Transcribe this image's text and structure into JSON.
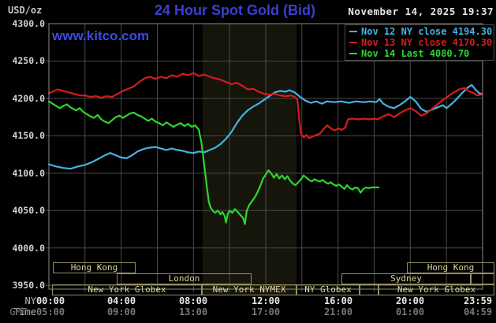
{
  "header": {
    "units_label": "USD/oz",
    "title": "24 Hour Spot Gold (Bid)",
    "timestamp": "November 14, 2025 19:37",
    "watermark": "www.kitco.com"
  },
  "legend": {
    "items": [
      {
        "label": "Nov 12 NY close 4194.30",
        "color": "#45b2e4"
      },
      {
        "label": "Nov 13 NY close 4170.30",
        "color": "#d41c1c"
      },
      {
        "label": "Nov 14 Last 4080.70",
        "color": "#2ed42e"
      }
    ]
  },
  "axes": {
    "ny_label": "NY Time",
    "gmt_label": "GMT",
    "y_ticks": [
      "4300.0",
      "4250.0",
      "4200.0",
      "4150.0",
      "4100.0",
      "4050.0",
      "4000.0",
      "3950.0"
    ],
    "x_ticks_ny": [
      "00:00",
      "04:00",
      "08:00",
      "12:00",
      "16:00",
      "20:00",
      "23:59"
    ],
    "x_ticks_gmt": [
      "05:00",
      "09:00",
      "13:00",
      "17:00",
      "21:00",
      "01:00",
      "04:59"
    ],
    "x_tick_hours": [
      0,
      4,
      8,
      12,
      16,
      20,
      23.93
    ]
  },
  "sessions": {
    "rows": [
      [
        {
          "label": "Hong Kong",
          "start": 0.2,
          "end": 4.8
        },
        {
          "label": "Hong Kong",
          "start": 19.8,
          "end": 24.65
        }
      ],
      [
        {
          "label": "London",
          "start": 3.75,
          "end": 11.2
        },
        {
          "label": "Sydney",
          "start": 16.2,
          "end": 23.35
        },
        {
          "label": "",
          "start": 23.35,
          "end": 24.65
        }
      ],
      [
        {
          "label": "New York Globex",
          "start": 0.17,
          "end": 8.47
        },
        {
          "label": "New York NYMEX",
          "start": 8.47,
          "end": 13.7
        },
        {
          "label": "NY Globex",
          "start": 13.7,
          "end": 17.2
        },
        {
          "label": "",
          "start": 17.2,
          "end": 18.24
        },
        {
          "label": "New York Globex",
          "start": 18.24,
          "end": 24.65
        }
      ]
    ]
  },
  "colors": {
    "background": "#000000",
    "grid": "#4a4a4a",
    "frame": "#8c8c8c",
    "band": "#15150c",
    "blue": "#45b2e4",
    "red": "#d41c1c",
    "green": "#2ed42e",
    "title_blue": "#3a3fd2",
    "session_border": "#95905f",
    "session_text": "#ded69b"
  },
  "chart_data": {
    "type": "line",
    "title": "24 Hour Spot Gold (Bid)",
    "xlabel": "NY Time (hours, 00:00-23:59)",
    "ylabel": "USD/oz",
    "xlim": [
      0,
      24
    ],
    "ylim": [
      3945,
      4300
    ],
    "grid": {
      "x_step_hours": 2,
      "y_step": 50
    },
    "legend_position": "top-right",
    "highlight_band_hours": [
      8.5,
      13.7
    ],
    "series": [
      {
        "name": "Nov 12",
        "close_label": "NY close 4194.30",
        "color": "#45b2e4",
        "points": [
          [
            0.0,
            4112
          ],
          [
            0.4,
            4109
          ],
          [
            0.8,
            4107
          ],
          [
            1.2,
            4106
          ],
          [
            1.6,
            4109
          ],
          [
            2.0,
            4111
          ],
          [
            2.4,
            4115
          ],
          [
            2.8,
            4120
          ],
          [
            3.1,
            4124
          ],
          [
            3.4,
            4127
          ],
          [
            3.7,
            4124
          ],
          [
            4.0,
            4121
          ],
          [
            4.3,
            4120
          ],
          [
            4.6,
            4124
          ],
          [
            4.9,
            4129
          ],
          [
            5.2,
            4132
          ],
          [
            5.5,
            4134
          ],
          [
            5.9,
            4135
          ],
          [
            6.2,
            4133
          ],
          [
            6.5,
            4131
          ],
          [
            6.8,
            4133
          ],
          [
            7.1,
            4131
          ],
          [
            7.4,
            4130
          ],
          [
            7.7,
            4128
          ],
          [
            8.0,
            4127
          ],
          [
            8.3,
            4129
          ],
          [
            8.6,
            4128
          ],
          [
            8.9,
            4131
          ],
          [
            9.2,
            4134
          ],
          [
            9.5,
            4139
          ],
          [
            9.8,
            4146
          ],
          [
            10.1,
            4155
          ],
          [
            10.4,
            4167
          ],
          [
            10.7,
            4177
          ],
          [
            11.0,
            4184
          ],
          [
            11.3,
            4189
          ],
          [
            11.6,
            4193
          ],
          [
            11.9,
            4198
          ],
          [
            12.2,
            4203
          ],
          [
            12.5,
            4208
          ],
          [
            12.8,
            4210
          ],
          [
            13.1,
            4209
          ],
          [
            13.3,
            4211
          ],
          [
            13.6,
            4208
          ],
          [
            13.9,
            4202
          ],
          [
            14.2,
            4197
          ],
          [
            14.5,
            4194
          ],
          [
            14.8,
            4196
          ],
          [
            15.1,
            4193
          ],
          [
            15.4,
            4196
          ],
          [
            15.8,
            4195
          ],
          [
            16.2,
            4196
          ],
          [
            16.6,
            4194
          ],
          [
            17.0,
            4196
          ],
          [
            17.4,
            4195
          ],
          [
            17.8,
            4196
          ],
          [
            18.1,
            4195
          ],
          [
            18.3,
            4199
          ],
          [
            18.5,
            4193
          ],
          [
            18.8,
            4189
          ],
          [
            19.1,
            4187
          ],
          [
            19.4,
            4191
          ],
          [
            19.7,
            4196
          ],
          [
            20.0,
            4202
          ],
          [
            20.3,
            4196
          ],
          [
            20.6,
            4186
          ],
          [
            20.9,
            4182
          ],
          [
            21.2,
            4185
          ],
          [
            21.5,
            4188
          ],
          [
            21.8,
            4191
          ],
          [
            22.0,
            4187
          ],
          [
            22.3,
            4193
          ],
          [
            22.6,
            4200
          ],
          [
            22.9,
            4208
          ],
          [
            23.2,
            4215
          ],
          [
            23.4,
            4218
          ],
          [
            23.6,
            4212
          ],
          [
            23.8,
            4207
          ],
          [
            23.95,
            4206
          ]
        ]
      },
      {
        "name": "Nov 13",
        "close_label": "NY close 4170.30",
        "color": "#d41c1c",
        "points": [
          [
            0.0,
            4207
          ],
          [
            0.3,
            4210
          ],
          [
            0.5,
            4212
          ],
          [
            0.8,
            4210
          ],
          [
            1.1,
            4208
          ],
          [
            1.4,
            4206
          ],
          [
            1.7,
            4204
          ],
          [
            2.0,
            4204
          ],
          [
            2.3,
            4202
          ],
          [
            2.6,
            4203
          ],
          [
            2.9,
            4201
          ],
          [
            3.2,
            4203
          ],
          [
            3.5,
            4202
          ],
          [
            3.8,
            4206
          ],
          [
            4.1,
            4210
          ],
          [
            4.4,
            4213
          ],
          [
            4.7,
            4216
          ],
          [
            5.0,
            4222
          ],
          [
            5.3,
            4227
          ],
          [
            5.6,
            4229
          ],
          [
            5.9,
            4226
          ],
          [
            6.2,
            4229
          ],
          [
            6.5,
            4227
          ],
          [
            6.8,
            4231
          ],
          [
            7.1,
            4229
          ],
          [
            7.4,
            4233
          ],
          [
            7.7,
            4231
          ],
          [
            8.0,
            4234
          ],
          [
            8.3,
            4230
          ],
          [
            8.6,
            4232
          ],
          [
            8.9,
            4229
          ],
          [
            9.2,
            4227
          ],
          [
            9.5,
            4225
          ],
          [
            9.8,
            4222
          ],
          [
            10.1,
            4219
          ],
          [
            10.4,
            4221
          ],
          [
            10.7,
            4217
          ],
          [
            11.0,
            4212
          ],
          [
            11.3,
            4213
          ],
          [
            11.6,
            4209
          ],
          [
            11.9,
            4206
          ],
          [
            12.2,
            4205
          ],
          [
            12.5,
            4206
          ],
          [
            12.8,
            4204
          ],
          [
            13.1,
            4203
          ],
          [
            13.4,
            4204
          ],
          [
            13.6,
            4202
          ],
          [
            13.75,
            4199
          ],
          [
            13.85,
            4172
          ],
          [
            13.95,
            4153
          ],
          [
            14.1,
            4148
          ],
          [
            14.25,
            4151
          ],
          [
            14.4,
            4147
          ],
          [
            14.6,
            4149
          ],
          [
            14.8,
            4151
          ],
          [
            15.0,
            4153
          ],
          [
            15.2,
            4159
          ],
          [
            15.4,
            4164
          ],
          [
            15.6,
            4160
          ],
          [
            15.8,
            4157
          ],
          [
            16.0,
            4160
          ],
          [
            16.2,
            4158
          ],
          [
            16.4,
            4161
          ],
          [
            16.55,
            4172
          ],
          [
            16.8,
            4173
          ],
          [
            17.1,
            4172
          ],
          [
            17.4,
            4173
          ],
          [
            17.7,
            4172
          ],
          [
            18.0,
            4173
          ],
          [
            18.2,
            4172
          ],
          [
            18.5,
            4176
          ],
          [
            18.8,
            4179
          ],
          [
            19.1,
            4175
          ],
          [
            19.4,
            4180
          ],
          [
            19.7,
            4184
          ],
          [
            20.0,
            4187
          ],
          [
            20.3,
            4183
          ],
          [
            20.6,
            4177
          ],
          [
            20.9,
            4180
          ],
          [
            21.2,
            4186
          ],
          [
            21.5,
            4192
          ],
          [
            21.8,
            4198
          ],
          [
            22.1,
            4203
          ],
          [
            22.4,
            4208
          ],
          [
            22.7,
            4212
          ],
          [
            23.0,
            4214
          ],
          [
            23.2,
            4210
          ],
          [
            23.5,
            4207
          ],
          [
            23.7,
            4204
          ],
          [
            23.95,
            4205
          ]
        ]
      },
      {
        "name": "Nov 14",
        "close_label": "Last 4080.70",
        "color": "#2ed42e",
        "points": [
          [
            0.0,
            4196
          ],
          [
            0.2,
            4193
          ],
          [
            0.4,
            4190
          ],
          [
            0.6,
            4187
          ],
          [
            0.8,
            4190
          ],
          [
            1.0,
            4192
          ],
          [
            1.2,
            4188
          ],
          [
            1.5,
            4184
          ],
          [
            1.7,
            4187
          ],
          [
            1.9,
            4182
          ],
          [
            2.1,
            4179
          ],
          [
            2.3,
            4176
          ],
          [
            2.5,
            4174
          ],
          [
            2.7,
            4178
          ],
          [
            2.9,
            4172
          ],
          [
            3.1,
            4169
          ],
          [
            3.3,
            4167
          ],
          [
            3.5,
            4171
          ],
          [
            3.7,
            4175
          ],
          [
            3.9,
            4177
          ],
          [
            4.1,
            4174
          ],
          [
            4.3,
            4177
          ],
          [
            4.5,
            4180
          ],
          [
            4.7,
            4181
          ],
          [
            4.9,
            4178
          ],
          [
            5.1,
            4176
          ],
          [
            5.3,
            4173
          ],
          [
            5.5,
            4170
          ],
          [
            5.7,
            4173
          ],
          [
            5.9,
            4169
          ],
          [
            6.1,
            4167
          ],
          [
            6.3,
            4164
          ],
          [
            6.5,
            4168
          ],
          [
            6.7,
            4165
          ],
          [
            6.9,
            4162
          ],
          [
            7.1,
            4165
          ],
          [
            7.3,
            4167
          ],
          [
            7.5,
            4163
          ],
          [
            7.7,
            4166
          ],
          [
            7.9,
            4162
          ],
          [
            8.1,
            4164
          ],
          [
            8.3,
            4158
          ],
          [
            8.45,
            4140
          ],
          [
            8.6,
            4110
          ],
          [
            8.75,
            4080
          ],
          [
            8.85,
            4062
          ],
          [
            8.95,
            4054
          ],
          [
            9.1,
            4049
          ],
          [
            9.2,
            4047
          ],
          [
            9.35,
            4050
          ],
          [
            9.5,
            4045
          ],
          [
            9.6,
            4048
          ],
          [
            9.72,
            4043
          ],
          [
            9.8,
            4034
          ],
          [
            9.9,
            4046
          ],
          [
            10.0,
            4050
          ],
          [
            10.15,
            4047
          ],
          [
            10.3,
            4052
          ],
          [
            10.45,
            4048
          ],
          [
            10.6,
            4044
          ],
          [
            10.75,
            4040
          ],
          [
            10.85,
            4032
          ],
          [
            10.95,
            4050
          ],
          [
            11.1,
            4058
          ],
          [
            11.25,
            4063
          ],
          [
            11.4,
            4068
          ],
          [
            11.55,
            4075
          ],
          [
            11.7,
            4083
          ],
          [
            11.85,
            4093
          ],
          [
            12.0,
            4098
          ],
          [
            12.15,
            4104
          ],
          [
            12.3,
            4100
          ],
          [
            12.45,
            4094
          ],
          [
            12.6,
            4099
          ],
          [
            12.75,
            4093
          ],
          [
            12.9,
            4097
          ],
          [
            13.05,
            4092
          ],
          [
            13.2,
            4096
          ],
          [
            13.35,
            4090
          ],
          [
            13.5,
            4086
          ],
          [
            13.65,
            4084
          ],
          [
            13.8,
            4088
          ],
          [
            13.95,
            4092
          ],
          [
            14.1,
            4097
          ],
          [
            14.25,
            4094
          ],
          [
            14.4,
            4091
          ],
          [
            14.55,
            4089
          ],
          [
            14.7,
            4092
          ],
          [
            14.85,
            4090
          ],
          [
            15.0,
            4089
          ],
          [
            15.15,
            4091
          ],
          [
            15.3,
            4088
          ],
          [
            15.45,
            4086
          ],
          [
            15.6,
            4088
          ],
          [
            15.75,
            4085
          ],
          [
            15.9,
            4083
          ],
          [
            16.05,
            4085
          ],
          [
            16.2,
            4082
          ],
          [
            16.35,
            4079
          ],
          [
            16.5,
            4084
          ],
          [
            16.65,
            4080
          ],
          [
            16.8,
            4078
          ],
          [
            16.95,
            4081
          ],
          [
            17.1,
            4080
          ],
          [
            17.25,
            4074
          ],
          [
            17.4,
            4079
          ],
          [
            17.55,
            4081
          ],
          [
            17.7,
            4080
          ],
          [
            17.85,
            4081
          ],
          [
            18.0,
            4081
          ],
          [
            18.24,
            4081
          ]
        ]
      }
    ]
  }
}
